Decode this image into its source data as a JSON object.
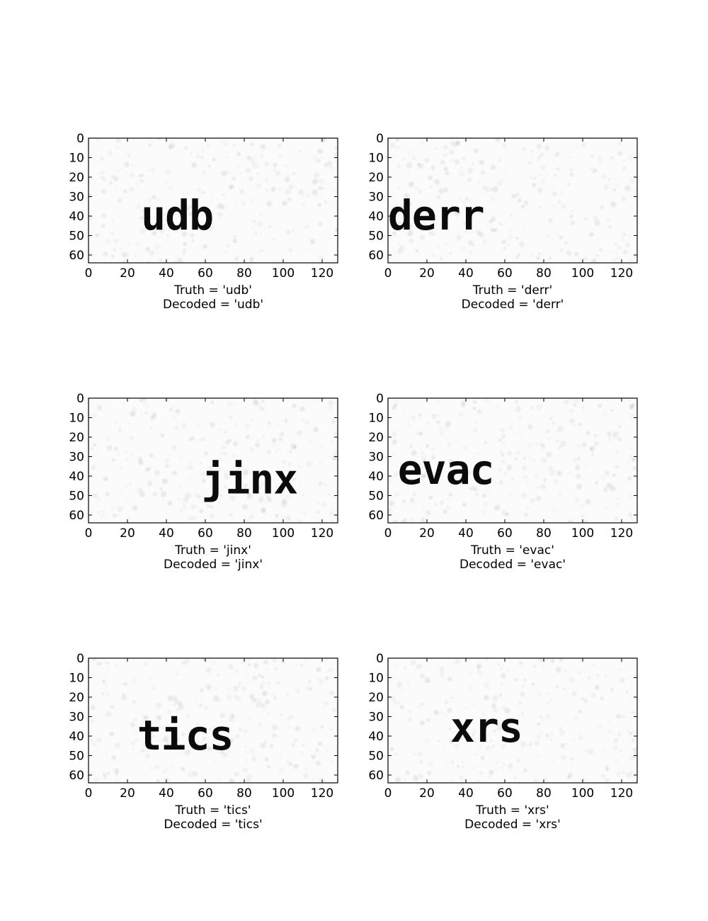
{
  "chart_data": [
    {
      "type": "image",
      "image_word": "udb",
      "word_position": {
        "x": 27,
        "y": 40
      },
      "word_scale": 1.0,
      "xticks": [
        0,
        20,
        40,
        60,
        80,
        100,
        120
      ],
      "yticks": [
        0,
        10,
        20,
        30,
        40,
        50,
        60
      ],
      "xlim": [
        0,
        128
      ],
      "ylim": [
        64,
        0
      ],
      "xlabel_lines": [
        "Truth = 'udb'",
        "Decoded = 'udb'"
      ]
    },
    {
      "type": "image",
      "image_word": "derr",
      "word_position": {
        "x": 0,
        "y": 40
      },
      "word_scale": 1.0,
      "xticks": [
        0,
        20,
        40,
        60,
        80,
        100,
        120
      ],
      "yticks": [
        0,
        10,
        20,
        30,
        40,
        50,
        60
      ],
      "xlim": [
        0,
        128
      ],
      "ylim": [
        64,
        0
      ],
      "xlabel_lines": [
        "Truth = 'derr'",
        "Decoded = 'derr'"
      ]
    },
    {
      "type": "image",
      "image_word": "jinx",
      "word_position": {
        "x": 58,
        "y": 42
      },
      "word_scale": 1.0,
      "xticks": [
        0,
        20,
        40,
        60,
        80,
        100,
        120
      ],
      "yticks": [
        0,
        10,
        20,
        30,
        40,
        50,
        60
      ],
      "xlim": [
        0,
        128
      ],
      "ylim": [
        64,
        0
      ],
      "xlabel_lines": [
        "Truth = 'jinx'",
        "Decoded = 'jinx'"
      ]
    },
    {
      "type": "image",
      "image_word": "evac",
      "word_position": {
        "x": 5,
        "y": 37
      },
      "word_scale": 1.0,
      "xticks": [
        0,
        20,
        40,
        60,
        80,
        100,
        120
      ],
      "yticks": [
        0,
        10,
        20,
        30,
        40,
        50,
        60
      ],
      "xlim": [
        0,
        128
      ],
      "ylim": [
        64,
        0
      ],
      "xlabel_lines": [
        "Truth = 'evac'",
        "Decoded = 'evac'"
      ]
    },
    {
      "type": "image",
      "image_word": "tics",
      "word_position": {
        "x": 25,
        "y": 40
      },
      "word_scale": 1.0,
      "xticks": [
        0,
        20,
        40,
        60,
        80,
        100,
        120
      ],
      "yticks": [
        0,
        10,
        20,
        30,
        40,
        50,
        60
      ],
      "xlim": [
        0,
        128
      ],
      "ylim": [
        64,
        0
      ],
      "xlabel_lines": [
        "Truth = 'tics'",
        "Decoded = 'tics'"
      ]
    },
    {
      "type": "image",
      "image_word": "xrs",
      "word_position": {
        "x": 32,
        "y": 36
      },
      "word_scale": 1.0,
      "xticks": [
        0,
        20,
        40,
        60,
        80,
        100,
        120
      ],
      "yticks": [
        0,
        10,
        20,
        30,
        40,
        50,
        60
      ],
      "xlim": [
        0,
        128
      ],
      "ylim": [
        64,
        0
      ],
      "xlabel_lines": [
        "Truth = 'xrs'",
        "Decoded = 'xrs'"
      ]
    }
  ],
  "colors": {
    "background": "#ffffff",
    "axes": "#000000",
    "noise": "#9a9a9a",
    "text": "#0b0b0b"
  }
}
